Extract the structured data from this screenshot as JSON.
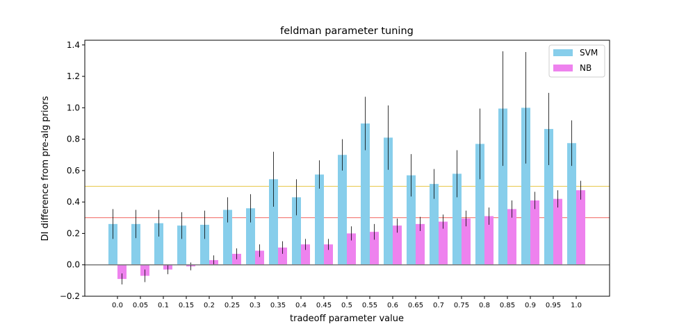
{
  "chart_data": {
    "type": "bar",
    "title": "feldman parameter tuning",
    "xlabel": "tradeoff parameter value",
    "ylabel": "DI difference from pre-alg priors",
    "categories": [
      "0.0",
      "0.05",
      "0.1",
      "0.15",
      "0.2",
      "0.25",
      "0.3",
      "0.35",
      "0.4",
      "0.45",
      "0.5",
      "0.55",
      "0.6",
      "0.65",
      "0.7",
      "0.75",
      "0.8",
      "0.85",
      "0.9",
      "0.95",
      "1.0"
    ],
    "ylim": [
      -0.2,
      1.43
    ],
    "yticks": [
      "−0.2",
      "0.0",
      "0.2",
      "0.4",
      "0.6",
      "0.8",
      "1.0",
      "1.2",
      "1.4"
    ],
    "ytick_values": [
      -0.2,
      0.0,
      0.2,
      0.4,
      0.6,
      0.8,
      1.0,
      1.2,
      1.4
    ],
    "grid": false,
    "legend_position": "top-right",
    "series": [
      {
        "name": "SVM",
        "color": "#87ceeb",
        "values": [
          0.26,
          0.26,
          0.265,
          0.25,
          0.255,
          0.35,
          0.36,
          0.545,
          0.43,
          0.575,
          0.7,
          0.9,
          0.81,
          0.57,
          0.515,
          0.58,
          0.77,
          0.995,
          1.0,
          0.865,
          0.775
        ],
        "errors": [
          0.095,
          0.09,
          0.085,
          0.085,
          0.09,
          0.08,
          0.09,
          0.175,
          0.115,
          0.09,
          0.1,
          0.17,
          0.205,
          0.135,
          0.095,
          0.15,
          0.225,
          0.365,
          0.355,
          0.23,
          0.145
        ]
      },
      {
        "name": "NB",
        "color": "#ee82ee",
        "values": [
          -0.09,
          -0.07,
          -0.03,
          -0.01,
          0.03,
          0.07,
          0.09,
          0.11,
          0.13,
          0.13,
          0.2,
          0.21,
          0.25,
          0.26,
          0.275,
          0.295,
          0.31,
          0.355,
          0.41,
          0.42,
          0.475
        ],
        "errors": [
          0.035,
          0.04,
          0.03,
          0.025,
          0.03,
          0.035,
          0.04,
          0.04,
          0.035,
          0.035,
          0.045,
          0.05,
          0.045,
          0.045,
          0.045,
          0.05,
          0.055,
          0.055,
          0.055,
          0.055,
          0.06
        ]
      }
    ],
    "reference_lines": [
      {
        "value": 0.5,
        "color": "#e6c84a"
      },
      {
        "value": 0.3,
        "color": "#f0605a"
      },
      {
        "value": 0.0,
        "color": "#777777"
      }
    ]
  }
}
